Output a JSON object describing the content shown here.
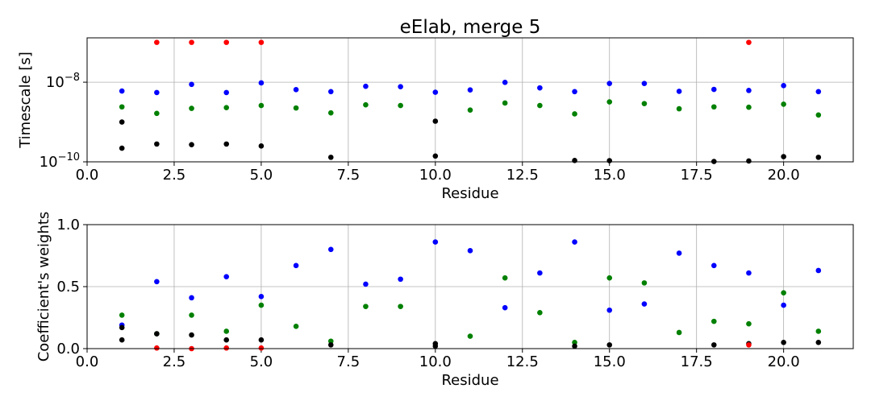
{
  "chart_data": [
    {
      "type": "scatter",
      "title": "eElab, merge 5",
      "xlabel": "Residue",
      "ylabel": "Timescale [s]",
      "xlim": [
        0,
        22
      ],
      "ylim": [
        1e-10,
        1.3e-07
      ],
      "yscale": "log",
      "grid": true,
      "xticks": [
        "0.0",
        "2.5",
        "5.0",
        "7.5",
        "10.0",
        "12.5",
        "15.0",
        "17.5",
        "20.0"
      ],
      "yticks": [
        {
          "value": 1e-08,
          "base": "10",
          "exp": "−8"
        },
        {
          "value": 1e-10,
          "base": "10",
          "exp": "−10"
        }
      ],
      "series": [
        {
          "color": "#0000ff",
          "points": [
            [
              1,
              6e-09
            ],
            [
              2,
              5.5e-09
            ],
            [
              3,
              8.8e-09
            ],
            [
              4,
              5.5e-09
            ],
            [
              5,
              9.6e-09
            ],
            [
              6,
              6.5e-09
            ],
            [
              7,
              5.8e-09
            ],
            [
              8,
              7.9e-09
            ],
            [
              9,
              7.7e-09
            ],
            [
              10,
              5.6e-09
            ],
            [
              11,
              6.4e-09
            ],
            [
              12,
              9.9e-09
            ],
            [
              13,
              7.2e-09
            ],
            [
              14,
              5.8e-09
            ],
            [
              15,
              9.3e-09
            ],
            [
              16,
              9.3e-09
            ],
            [
              17,
              5.9e-09
            ],
            [
              18,
              6.6e-09
            ],
            [
              19,
              6.2e-09
            ],
            [
              20,
              8.2e-09
            ],
            [
              21,
              5.8e-09
            ]
          ]
        },
        {
          "color": "#008000",
          "points": [
            [
              1,
              2.4e-09
            ],
            [
              2,
              1.65e-09
            ],
            [
              3,
              2.2e-09
            ],
            [
              4,
              2.3e-09
            ],
            [
              5,
              2.6e-09
            ],
            [
              6,
              2.25e-09
            ],
            [
              7,
              1.7e-09
            ],
            [
              8,
              2.7e-09
            ],
            [
              9,
              2.6e-09
            ],
            [
              11,
              2e-09
            ],
            [
              12,
              3e-09
            ],
            [
              13,
              2.6e-09
            ],
            [
              14,
              1.6e-09
            ],
            [
              15,
              3.2e-09
            ],
            [
              16,
              2.9e-09
            ],
            [
              17,
              2.15e-09
            ],
            [
              18,
              2.4e-09
            ],
            [
              19,
              2.35e-09
            ],
            [
              20,
              2.8e-09
            ],
            [
              21,
              1.5e-09
            ]
          ]
        },
        {
          "color": "#000000",
          "points": [
            [
              1,
              1e-09
            ],
            [
              1,
              2.2e-10
            ],
            [
              2,
              2.8e-10
            ],
            [
              3,
              2.7e-10
            ],
            [
              4,
              2.8e-10
            ],
            [
              5,
              2.5e-10
            ],
            [
              7,
              1.3e-10
            ],
            [
              10,
              1.05e-09
            ],
            [
              10,
              1.4e-10
            ],
            [
              14,
              1.08e-10
            ],
            [
              15,
              1.07e-10
            ],
            [
              18,
              1.02e-10
            ],
            [
              19,
              1.05e-10
            ],
            [
              20,
              1.35e-10
            ],
            [
              21,
              1.3e-10
            ]
          ]
        },
        {
          "color": "#ff0000",
          "points": [
            [
              2,
              1e-07
            ],
            [
              3,
              1e-07
            ],
            [
              4,
              1e-07
            ],
            [
              5,
              1e-07
            ],
            [
              19,
              1e-07
            ]
          ]
        }
      ]
    },
    {
      "type": "scatter",
      "xlabel": "Residue",
      "ylabel": "Coefficient's weights",
      "xlim": [
        0,
        22
      ],
      "ylim": [
        0,
        1
      ],
      "grid": true,
      "xticks": [
        "0.0",
        "2.5",
        "5.0",
        "7.5",
        "10.0",
        "12.5",
        "15.0",
        "17.5",
        "20.0"
      ],
      "yticks": [
        "0.0",
        "0.5",
        "1.0"
      ],
      "series": [
        {
          "color": "#0000ff",
          "points": [
            [
              1,
              0.19
            ],
            [
              2,
              0.54
            ],
            [
              3,
              0.41
            ],
            [
              4,
              0.58
            ],
            [
              5,
              0.42
            ],
            [
              6,
              0.67
            ],
            [
              7,
              0.8
            ],
            [
              8,
              0.52
            ],
            [
              9,
              0.56
            ],
            [
              10,
              0.86
            ],
            [
              11,
              0.79
            ],
            [
              12,
              0.33
            ],
            [
              13,
              0.61
            ],
            [
              14,
              0.86
            ],
            [
              15,
              0.31
            ],
            [
              16,
              0.36
            ],
            [
              17,
              0.77
            ],
            [
              18,
              0.67
            ],
            [
              19,
              0.61
            ],
            [
              20,
              0.35
            ],
            [
              21,
              0.63
            ]
          ]
        },
        {
          "color": "#008000",
          "points": [
            [
              1,
              0.27
            ],
            [
              2,
              0.12
            ],
            [
              3,
              0.27
            ],
            [
              4,
              0.14
            ],
            [
              5,
              0.35
            ],
            [
              6,
              0.18
            ],
            [
              7,
              0.06
            ],
            [
              8,
              0.34
            ],
            [
              9,
              0.34
            ],
            [
              11,
              0.1
            ],
            [
              12,
              0.57
            ],
            [
              13,
              0.29
            ],
            [
              14,
              0.05
            ],
            [
              15,
              0.57
            ],
            [
              16,
              0.53
            ],
            [
              17,
              0.13
            ],
            [
              18,
              0.22
            ],
            [
              19,
              0.2
            ],
            [
              20,
              0.45
            ],
            [
              21,
              0.14
            ]
          ]
        },
        {
          "color": "#000000",
          "points": [
            [
              1,
              0.17
            ],
            [
              1,
              0.07
            ],
            [
              2,
              0.12
            ],
            [
              3,
              0.11
            ],
            [
              4,
              0.07
            ],
            [
              5,
              0.07
            ],
            [
              7,
              0.03
            ],
            [
              10,
              0.04
            ],
            [
              10,
              0.02
            ],
            [
              14,
              0.02
            ],
            [
              15,
              0.03
            ],
            [
              18,
              0.03
            ],
            [
              19,
              0.04
            ],
            [
              20,
              0.05
            ],
            [
              21,
              0.05
            ]
          ]
        },
        {
          "color": "#ff0000",
          "points": [
            [
              2,
              0.005
            ],
            [
              3,
              0.0
            ],
            [
              4,
              0.005
            ],
            [
              5,
              0.005
            ],
            [
              19,
              0.03
            ]
          ]
        }
      ]
    }
  ]
}
